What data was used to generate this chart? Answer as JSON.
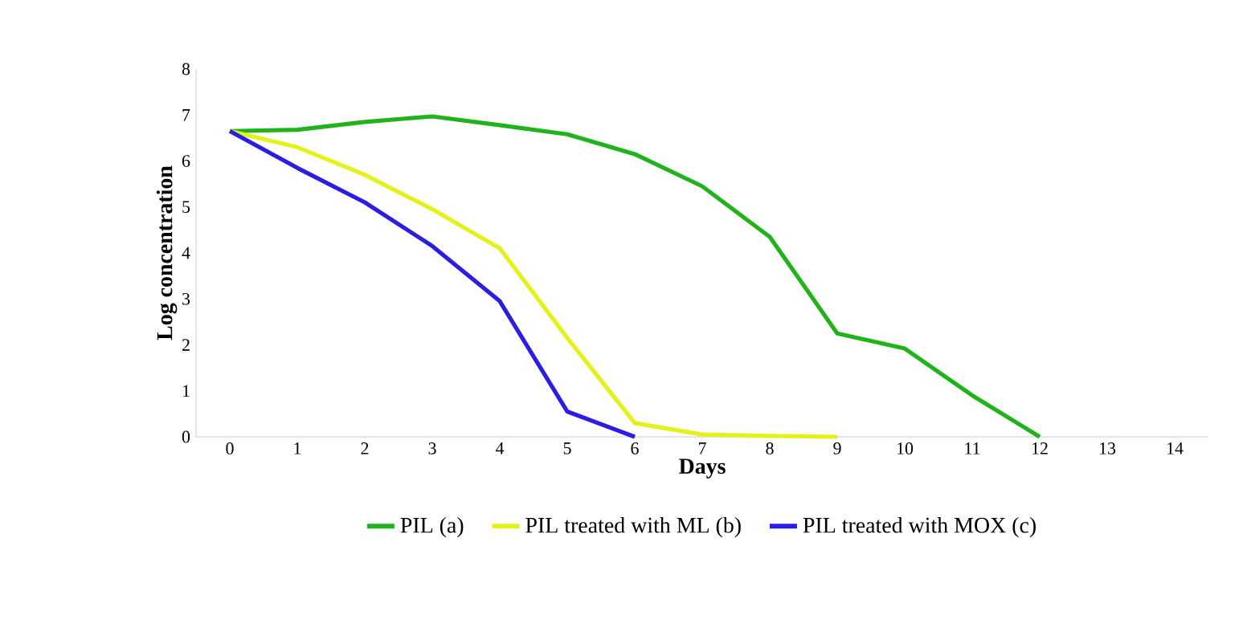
{
  "chart_data": {
    "type": "line",
    "xlabel": "Days",
    "ylabel": "Log concentration",
    "categories": [
      "0",
      "1",
      "2",
      "3",
      "4",
      "5",
      "6",
      "7",
      "8",
      "9",
      "10",
      "11",
      "12",
      "13",
      "14"
    ],
    "series": [
      {
        "name": "PIL (a)",
        "color": "#22b21e",
        "values": [
          6.65,
          6.68,
          6.85,
          6.97,
          6.78,
          6.58,
          6.15,
          5.45,
          4.35,
          2.25,
          1.92,
          0.9,
          0,
          null,
          null
        ]
      },
      {
        "name": "PIL treated with ML (b)",
        "color": "#e4f21c",
        "values": [
          6.65,
          6.3,
          5.7,
          4.95,
          4.1,
          2.15,
          0.3,
          0.05,
          0.02,
          0,
          null,
          null,
          null,
          null,
          null
        ]
      },
      {
        "name": "PIL treated with MOX (c)",
        "color": "#2b1ee0",
        "values": [
          6.65,
          5.85,
          5.1,
          4.15,
          2.95,
          0.55,
          0,
          null,
          null,
          null,
          null,
          null,
          null,
          null,
          null
        ]
      }
    ],
    "ylim": [
      0,
      8
    ],
    "yticks": [
      0,
      1,
      2,
      3,
      4,
      5,
      6,
      7,
      8
    ],
    "grid": false,
    "legend": "bottom",
    "marker": "none",
    "line_style": "solid"
  }
}
